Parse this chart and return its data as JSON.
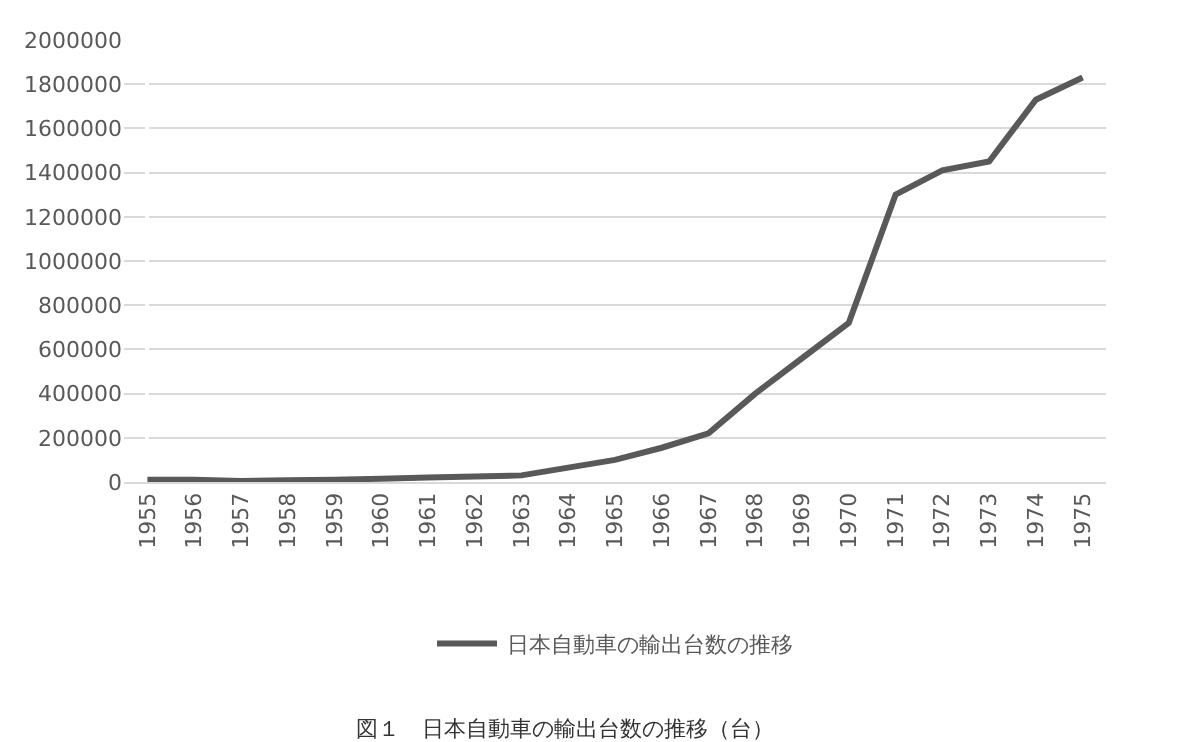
{
  "chart_data": {
    "type": "line",
    "categories": [
      "1955",
      "1956",
      "1957",
      "1958",
      "1959",
      "1960",
      "1961",
      "1962",
      "1963",
      "1964",
      "1965",
      "1966",
      "1967",
      "1968",
      "1969",
      "1970",
      "1971",
      "1972",
      "1973",
      "1974",
      "1975"
    ],
    "series": [
      {
        "name": "日本自動車の輸出台数の推移",
        "color": "#595959",
        "values": [
          10000,
          10000,
          5000,
          8000,
          10000,
          15000,
          20000,
          25000,
          30000,
          65000,
          100000,
          155000,
          220000,
          400000,
          560000,
          720000,
          1300000,
          1410000,
          1450000,
          1730000,
          1830000
        ]
      }
    ],
    "ylim": [
      0,
      2000000
    ],
    "yticks": [
      0,
      200000,
      400000,
      600000,
      800000,
      1000000,
      1200000,
      1400000,
      1600000,
      1800000,
      2000000
    ],
    "grid": "y",
    "legend": "bottom",
    "marker": "none",
    "line_style": "solid",
    "annotations": [
      "図１　日本自動車の輸出台数の推移（台）"
    ]
  }
}
